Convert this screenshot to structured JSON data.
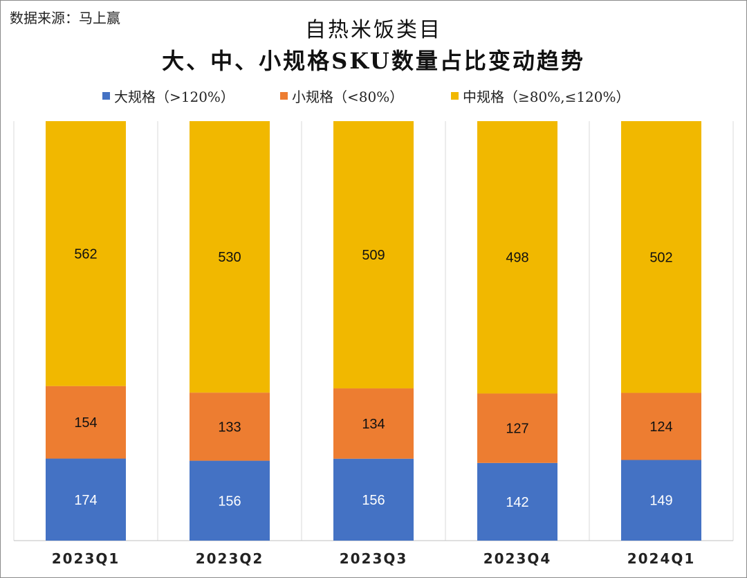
{
  "source_text": "数据来源：马上赢",
  "chart_data": {
    "type": "bar",
    "stacked": true,
    "title": "自热米饭类目",
    "subtitle": "大、中、小规格SKU数量占比变动趋势",
    "categories": [
      "2023Q1",
      "2023Q2",
      "2023Q3",
      "2023Q4",
      "2024Q1"
    ],
    "series": [
      {
        "name": "大规格（>120%）",
        "color": "#4472C4",
        "values": [
          174,
          156,
          156,
          142,
          149
        ]
      },
      {
        "name": "小规格（<80%）",
        "color": "#ED7D31",
        "values": [
          154,
          133,
          134,
          127,
          124
        ]
      },
      {
        "name": "中规格（≥80%,≤120%）",
        "color": "#F1B800",
        "values": [
          562,
          530,
          509,
          498,
          502
        ]
      }
    ],
    "value_labels": true,
    "normalized_100_percent": true,
    "legend_position": "top",
    "grid": false,
    "vertical_separators": true,
    "label_colors": {
      "大规格（>120%）": "#ffffff",
      "小规格（<80%）": "#111111",
      "中规格（≥80%,≤120%）": "#111111"
    }
  }
}
